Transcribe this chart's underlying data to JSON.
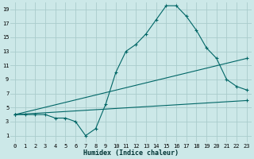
{
  "xlabel": "Humidex (Indice chaleur)",
  "bg_color": "#cce8e8",
  "grid_color": "#aacccc",
  "line_color": "#006666",
  "line1_x": [
    0,
    1,
    2,
    3,
    4,
    5,
    6,
    7,
    8,
    9,
    10,
    11,
    12,
    13,
    14,
    15,
    16,
    17,
    18,
    19,
    20,
    21,
    22,
    23
  ],
  "line1_y": [
    4,
    4,
    4,
    4,
    3.5,
    3.5,
    3,
    1,
    2,
    5.5,
    10,
    13,
    14,
    15.5,
    17.5,
    19.5,
    19.5,
    18,
    16,
    13.5,
    12,
    9,
    8,
    7.5
  ],
  "line2_x": [
    0,
    23
  ],
  "line2_y": [
    4,
    6
  ],
  "line3_x": [
    0,
    23
  ],
  "line3_y": [
    4,
    12
  ],
  "xlim": [
    -0.5,
    23.5
  ],
  "ylim": [
    0,
    20
  ],
  "xticks": [
    0,
    1,
    2,
    3,
    4,
    5,
    6,
    7,
    8,
    9,
    10,
    11,
    12,
    13,
    14,
    15,
    16,
    17,
    18,
    19,
    20,
    21,
    22,
    23
  ],
  "yticks": [
    1,
    3,
    5,
    7,
    9,
    11,
    13,
    15,
    17,
    19
  ],
  "xlabel_fontsize": 6,
  "tick_fontsize": 5
}
